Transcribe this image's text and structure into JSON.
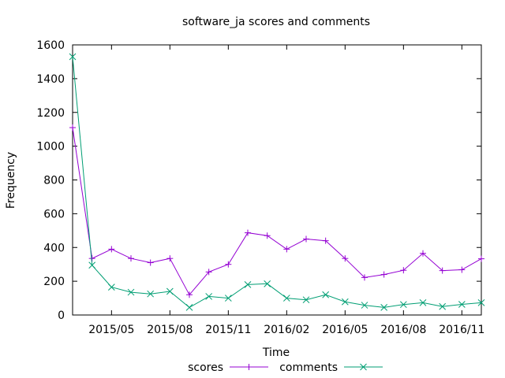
{
  "chart_data": {
    "type": "line",
    "title": "software_ja scores and comments",
    "xlabel": "Time",
    "ylabel": "Frequency",
    "x": [
      "2015-03",
      "2015-04",
      "2015-05",
      "2015-06",
      "2015-07",
      "2015-08",
      "2015-09",
      "2015-10",
      "2015-11",
      "2015-12",
      "2016-01",
      "2016-02",
      "2016-03",
      "2016-04",
      "2016-05",
      "2016-06",
      "2016-07",
      "2016-08",
      "2016-09",
      "2016-10",
      "2016-11",
      "2016-12"
    ],
    "x_tick_labels": [
      "2015/05",
      "2015/08",
      "2015/11",
      "2016/02",
      "2016/05",
      "2016/08",
      "2016/11"
    ],
    "x_tick_values": [
      "2015-05",
      "2015-08",
      "2015-11",
      "2016-02",
      "2016-05",
      "2016-08",
      "2016-11"
    ],
    "x_range": [
      "2015-03",
      "2016-12"
    ],
    "ylim": [
      0,
      1600
    ],
    "y_ticks": [
      0,
      200,
      400,
      600,
      800,
      1000,
      1200,
      1400,
      1600
    ],
    "grid": false,
    "legend_position": "bottom",
    "series": [
      {
        "name": "scores",
        "color": "#9400d3",
        "marker": "plus",
        "values": [
          1110,
          335,
          390,
          335,
          310,
          335,
          120,
          255,
          300,
          487,
          470,
          390,
          450,
          440,
          335,
          222,
          240,
          265,
          365,
          263,
          268,
          333
        ]
      },
      {
        "name": "comments",
        "color": "#009e73",
        "marker": "cross",
        "values": [
          1530,
          295,
          165,
          135,
          125,
          140,
          45,
          110,
          100,
          180,
          185,
          100,
          90,
          120,
          78,
          58,
          45,
          62,
          73,
          50,
          63,
          73
        ]
      }
    ]
  }
}
